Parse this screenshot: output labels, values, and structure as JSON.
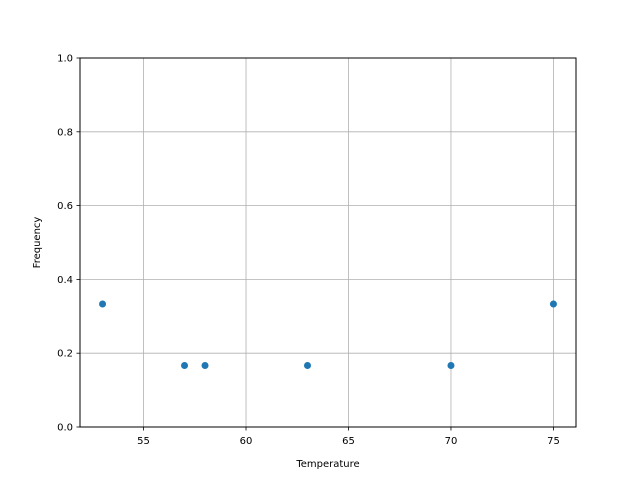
{
  "chart_data": {
    "type": "scatter",
    "title": "",
    "xlabel": "Temperature",
    "ylabel": "Frequency",
    "xlim": [
      51.9,
      76.1
    ],
    "ylim": [
      0.0,
      1.0
    ],
    "xticks": [
      55,
      60,
      65,
      70,
      75
    ],
    "xtick_labels": [
      "55",
      "60",
      "65",
      "70",
      "75"
    ],
    "yticks": [
      0.0,
      0.2,
      0.4,
      0.6,
      0.8,
      1.0
    ],
    "ytick_labels": [
      "0.0",
      "0.2",
      "0.4",
      "0.6",
      "0.8",
      "1.0"
    ],
    "grid": true,
    "points": [
      {
        "x": 53,
        "y": 0.3333
      },
      {
        "x": 57,
        "y": 0.1667
      },
      {
        "x": 58,
        "y": 0.1667
      },
      {
        "x": 63,
        "y": 0.1667
      },
      {
        "x": 70,
        "y": 0.1667
      },
      {
        "x": 75,
        "y": 0.3333
      }
    ],
    "marker_color": "#1f77b4",
    "grid_color": "#b0b0b0"
  }
}
